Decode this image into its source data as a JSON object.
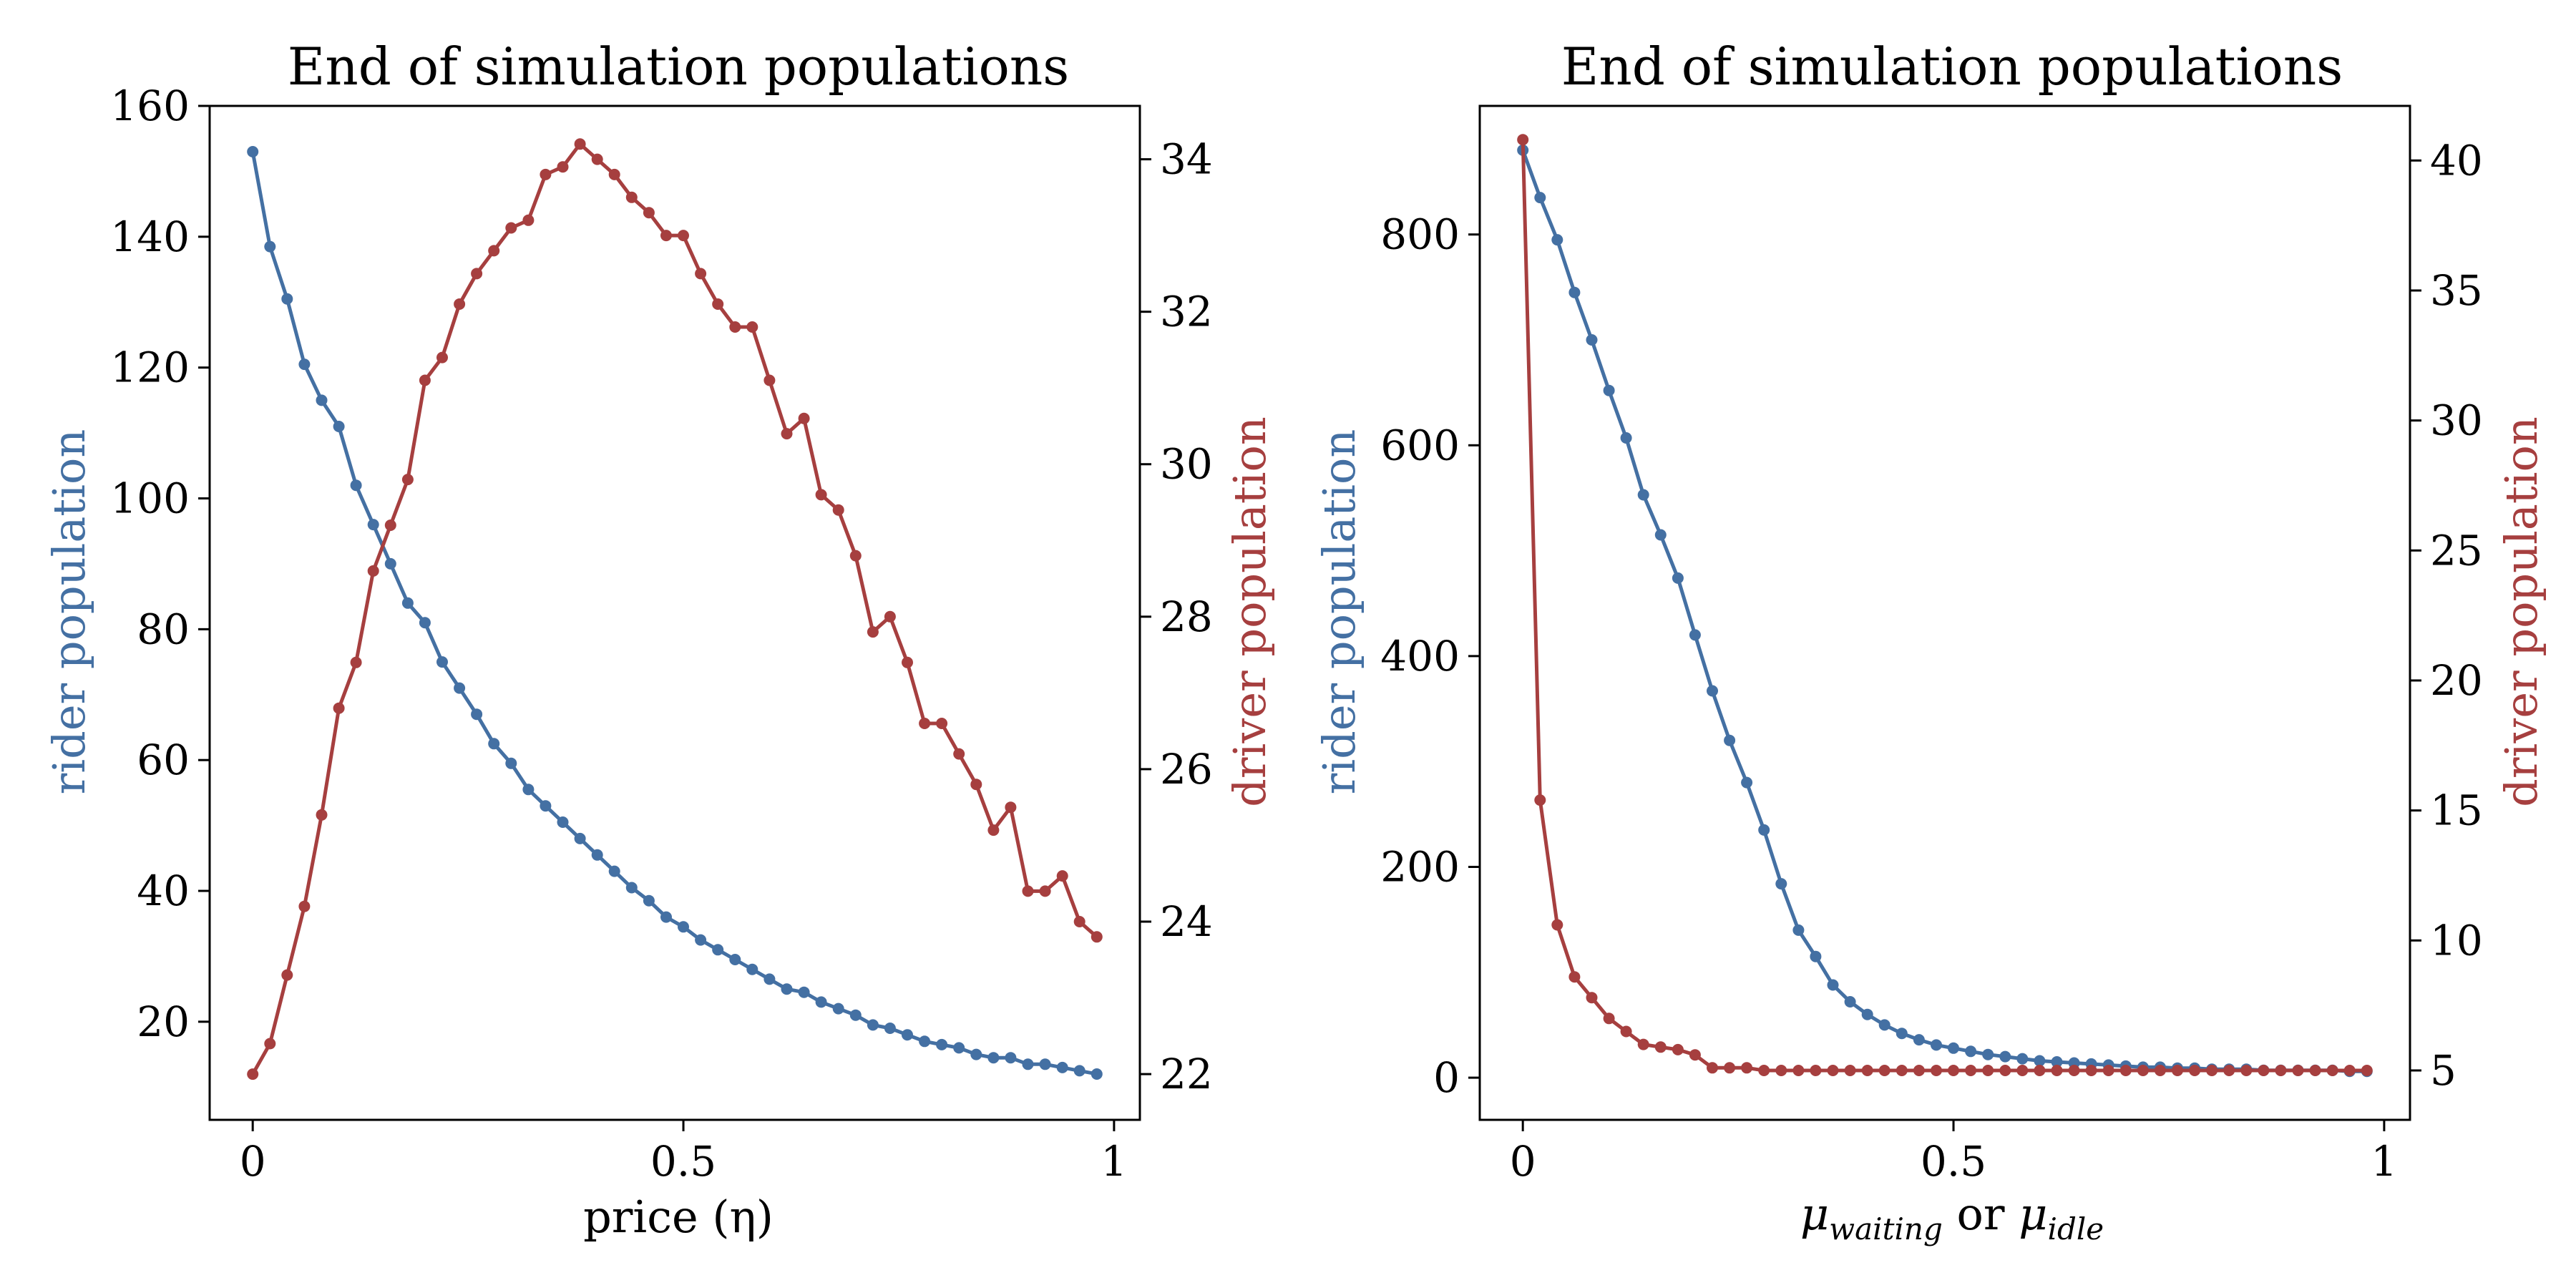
{
  "colors": {
    "rider": "#4470a3",
    "driver": "#a63f3f",
    "frame": "#000000"
  },
  "chart_data": [
    {
      "type": "line",
      "title": "End of simulation populations",
      "xlabel": "price (η)",
      "ylabel_left": "rider population",
      "ylabel_right": "driver population",
      "xlim": [
        -0.05,
        1.03
      ],
      "ylim_left": [
        5,
        160
      ],
      "ylim_right": [
        21.4,
        34.7
      ],
      "xticks": [
        0,
        0.5,
        1
      ],
      "xtick_labels": [
        "0",
        "0.5",
        "1"
      ],
      "yticks_left": [
        20,
        40,
        60,
        80,
        100,
        120,
        140,
        160
      ],
      "yticks_right": [
        22,
        24,
        26,
        28,
        30,
        32,
        34
      ],
      "x": [
        0,
        0.02,
        0.04,
        0.06,
        0.08,
        0.1,
        0.12,
        0.14,
        0.16,
        0.18,
        0.2,
        0.22,
        0.24,
        0.26,
        0.28,
        0.3,
        0.32,
        0.34,
        0.36,
        0.38,
        0.4,
        0.42,
        0.44,
        0.46,
        0.48,
        0.5,
        0.52,
        0.54,
        0.56,
        0.58,
        0.6,
        0.62,
        0.64,
        0.66,
        0.68,
        0.7,
        0.72,
        0.74,
        0.76,
        0.78,
        0.8,
        0.82,
        0.84,
        0.86,
        0.88,
        0.9,
        0.92,
        0.94,
        0.96,
        0.98
      ],
      "series": [
        {
          "name": "rider population",
          "axis": "left",
          "values": [
            153,
            138.5,
            130.5,
            120.5,
            115,
            111,
            102,
            96,
            90,
            84,
            81,
            75,
            71,
            67,
            62.5,
            59.5,
            55.5,
            53,
            50.5,
            48,
            45.5,
            43,
            40.5,
            38.5,
            36,
            34.5,
            32.5,
            31,
            29.5,
            28,
            26.5,
            25,
            24.5,
            23,
            22,
            21,
            19.5,
            19,
            18,
            17,
            16.5,
            16,
            15,
            14.5,
            14.5,
            13.5,
            13.5,
            13,
            12.5,
            12
          ]
        },
        {
          "name": "driver population",
          "axis": "right",
          "values": [
            22.0,
            22.4,
            23.3,
            24.2,
            25.4,
            26.8,
            27.4,
            28.6,
            29.2,
            29.8,
            31.1,
            31.4,
            32.1,
            32.5,
            32.8,
            33.1,
            33.2,
            33.8,
            33.9,
            34.2,
            34.0,
            33.8,
            33.5,
            33.3,
            33.0,
            33.0,
            32.5,
            32.1,
            31.8,
            31.8,
            31.1,
            30.4,
            30.6,
            29.6,
            29.4,
            28.8,
            27.8,
            28.0,
            27.4,
            26.6,
            26.6,
            26.2,
            25.8,
            25.2,
            25.5,
            24.4,
            24.4,
            24.6,
            24.0,
            23.8
          ]
        }
      ]
    },
    {
      "type": "line",
      "title": "End of simulation populations",
      "xlabel_parts": {
        "mu": "μ",
        "sub_waiting": "waiting",
        "or": " or ",
        "sub_idle": "idle"
      },
      "ylabel_left": "rider population",
      "ylabel_right": "driver population",
      "xlim": [
        -0.05,
        1.03
      ],
      "ylim_left": [
        -40,
        922
      ],
      "ylim_right": [
        3.1,
        42.1
      ],
      "xticks": [
        0,
        0.5,
        1
      ],
      "xtick_labels": [
        "0",
        "0.5",
        "1"
      ],
      "yticks_left": [
        0,
        200,
        400,
        600,
        800
      ],
      "yticks_right": [
        5,
        10,
        15,
        20,
        25,
        30,
        35,
        40
      ],
      "x": [
        0,
        0.02,
        0.04,
        0.06,
        0.08,
        0.1,
        0.12,
        0.14,
        0.16,
        0.18,
        0.2,
        0.22,
        0.24,
        0.26,
        0.28,
        0.3,
        0.32,
        0.34,
        0.36,
        0.38,
        0.4,
        0.42,
        0.44,
        0.46,
        0.48,
        0.5,
        0.52,
        0.54,
        0.56,
        0.58,
        0.6,
        0.62,
        0.64,
        0.66,
        0.68,
        0.7,
        0.72,
        0.74,
        0.76,
        0.78,
        0.8,
        0.82,
        0.84,
        0.86,
        0.88,
        0.9,
        0.92,
        0.94,
        0.96,
        0.98
      ],
      "series": [
        {
          "name": "rider population",
          "axis": "left",
          "values": [
            880,
            835,
            795,
            745,
            700,
            652,
            607,
            553,
            515,
            474,
            420,
            367,
            320,
            280,
            235,
            184,
            140,
            115,
            88,
            72,
            60,
            50,
            42,
            36,
            31,
            28,
            25,
            22,
            20,
            18,
            16,
            15,
            14,
            13,
            12,
            11,
            10,
            10,
            9,
            9,
            8,
            8,
            8,
            7,
            7,
            7,
            7,
            7,
            6,
            6
          ]
        },
        {
          "name": "driver population",
          "axis": "right",
          "values": [
            40.8,
            15.4,
            10.6,
            8.6,
            7.8,
            7.0,
            6.5,
            6.0,
            5.9,
            5.8,
            5.6,
            5.1,
            5.1,
            5.1,
            5.0,
            5.0,
            5.0,
            5.0,
            5.0,
            5.0,
            5.0,
            5.0,
            5.0,
            5.0,
            5.0,
            5.0,
            5.0,
            5.0,
            5.0,
            5.0,
            5.0,
            5.0,
            5.0,
            5.0,
            5.0,
            5.0,
            5.0,
            5.0,
            5.0,
            5.0,
            5.0,
            5.0,
            5.0,
            5.0,
            5.0,
            5.0,
            5.0,
            5.0,
            5.0,
            5.0
          ]
        }
      ]
    }
  ]
}
